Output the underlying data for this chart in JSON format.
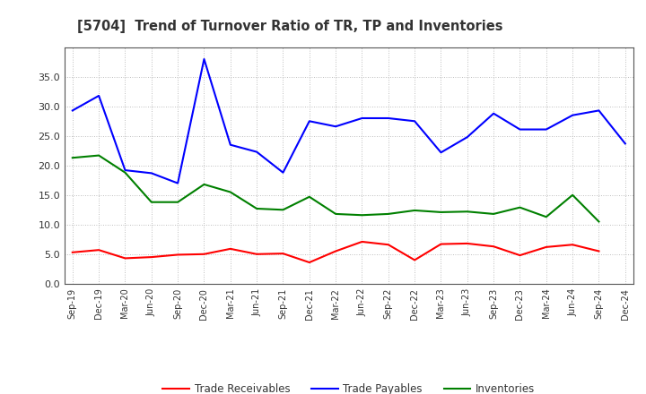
{
  "title": "[5704]  Trend of Turnover Ratio of TR, TP and Inventories",
  "x_labels": [
    "Sep-19",
    "Dec-19",
    "Mar-20",
    "Jun-20",
    "Sep-20",
    "Dec-20",
    "Mar-21",
    "Jun-21",
    "Sep-21",
    "Dec-21",
    "Mar-22",
    "Jun-22",
    "Sep-22",
    "Dec-22",
    "Mar-23",
    "Jun-23",
    "Sep-23",
    "Dec-23",
    "Mar-24",
    "Jun-24",
    "Sep-24",
    "Dec-24"
  ],
  "trade_receivables": [
    5.3,
    5.7,
    4.3,
    4.5,
    4.9,
    5.0,
    5.9,
    5.0,
    5.1,
    3.6,
    5.5,
    7.1,
    6.6,
    4.0,
    6.7,
    6.8,
    6.3,
    4.8,
    6.2,
    6.6,
    5.5,
    null
  ],
  "trade_payables": [
    29.3,
    31.8,
    19.2,
    18.7,
    17.0,
    38.0,
    23.5,
    22.3,
    18.8,
    27.5,
    26.6,
    28.0,
    28.0,
    27.5,
    22.2,
    24.8,
    28.8,
    26.1,
    26.1,
    28.5,
    29.3,
    23.7
  ],
  "inventories": [
    21.3,
    21.7,
    18.8,
    13.8,
    13.8,
    16.8,
    15.5,
    12.7,
    12.5,
    14.7,
    11.8,
    11.6,
    11.8,
    12.4,
    12.1,
    12.2,
    11.8,
    12.9,
    11.3,
    15.0,
    10.5,
    null
  ],
  "ylim": [
    0.0,
    40.0
  ],
  "yticks": [
    0.0,
    5.0,
    10.0,
    15.0,
    20.0,
    25.0,
    30.0,
    35.0
  ],
  "line_color_tr": "#ff0000",
  "line_color_tp": "#0000ff",
  "line_color_inv": "#008000",
  "background_color": "#ffffff",
  "grid_color": "#aaaaaa",
  "title_color": "#333333",
  "legend_labels": [
    "Trade Receivables",
    "Trade Payables",
    "Inventories"
  ]
}
